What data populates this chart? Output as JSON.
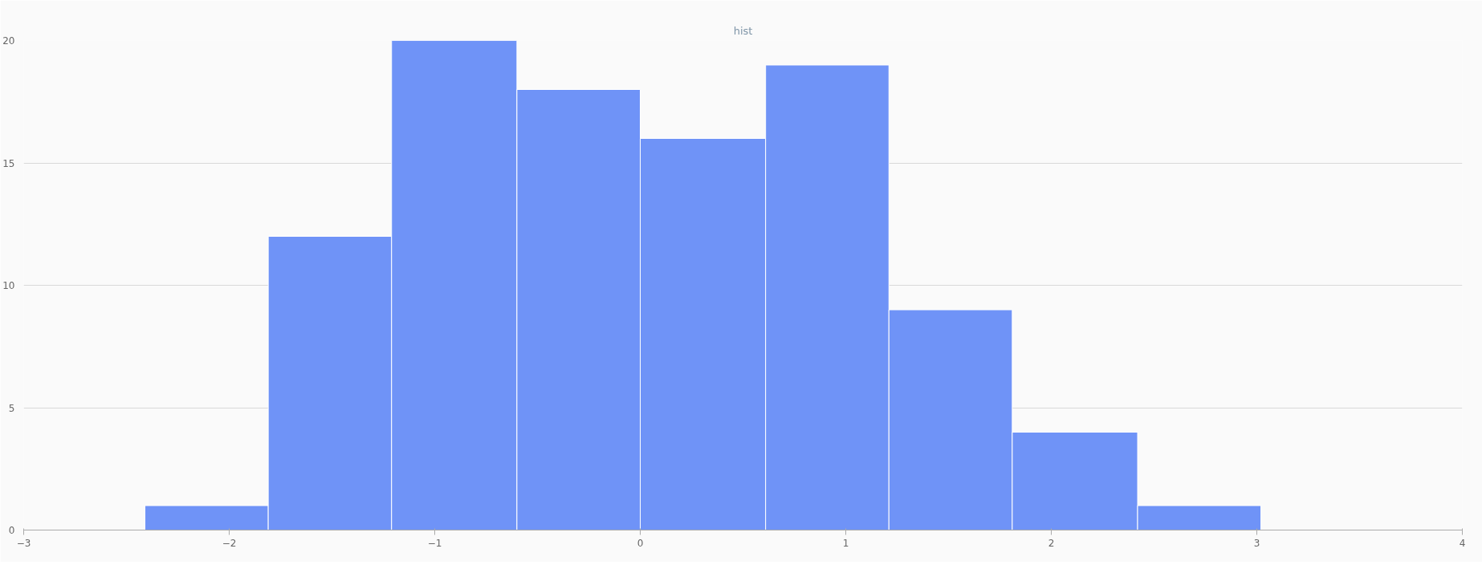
{
  "chart_data": {
    "type": "histogram",
    "title": "hist",
    "bins": [
      -2.41,
      -1.81,
      -1.21,
      -0.6,
      0.0,
      0.61,
      1.21,
      1.81,
      2.42,
      3.02
    ],
    "values": [
      1,
      12,
      20,
      18,
      16,
      19,
      9,
      4,
      1
    ],
    "color": "#6f93f7",
    "xlim": [
      -3,
      4
    ],
    "xticks": [
      -3,
      -2,
      -1,
      0,
      1,
      2,
      3,
      4
    ],
    "ylim": [
      0,
      20
    ],
    "yticks": [
      0,
      5,
      10,
      15,
      20
    ],
    "grid": "y"
  }
}
